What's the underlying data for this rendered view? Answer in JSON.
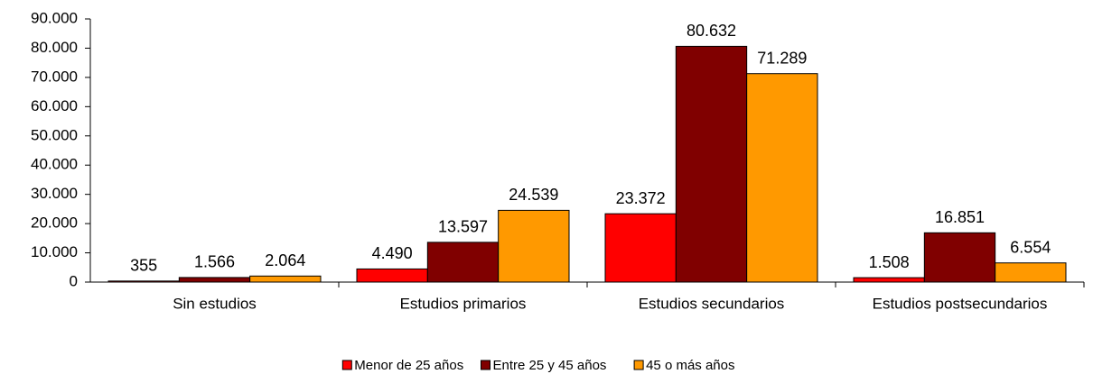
{
  "chart_data": {
    "type": "bar",
    "categories": [
      "Sin estudios",
      "Estudios primarios",
      "Estudios secundarios",
      "Estudios postsecundarios"
    ],
    "series": [
      {
        "name": "Menor de 25 años",
        "color": "#ff0000",
        "values": [
          355,
          4490,
          23372,
          1508
        ],
        "value_labels": [
          "355",
          "4.490",
          "23.372",
          "1.508"
        ]
      },
      {
        "name": "Entre 25 y 45 años",
        "color": "#800000",
        "values": [
          1566,
          13597,
          80632,
          16851
        ],
        "value_labels": [
          "1.566",
          "13.597",
          "80.632",
          "16.851"
        ]
      },
      {
        "name": "45 o más años",
        "color": "#ff9900",
        "values": [
          2064,
          24539,
          71289,
          6554
        ],
        "value_labels": [
          "2.064",
          "24.539",
          "71.289",
          "6.554"
        ]
      }
    ],
    "ylim": [
      0,
      90000
    ],
    "yticks": [
      0,
      {
        "value": 10000,
        "label": "10.000"
      },
      {
        "value": 20000,
        "label": "20.000"
      },
      {
        "value": 30000,
        "label": "30.000"
      },
      {
        "value": 40000,
        "label": "40.000"
      },
      {
        "value": 50000,
        "label": "50.000"
      },
      {
        "value": 60000,
        "label": "60.000"
      },
      {
        "value": 70000,
        "label": "70.000"
      },
      {
        "value": 80000,
        "label": "80.000"
      },
      {
        "value": 90000,
        "label": "90.000"
      }
    ],
    "grid": false,
    "legend": "bottom"
  }
}
